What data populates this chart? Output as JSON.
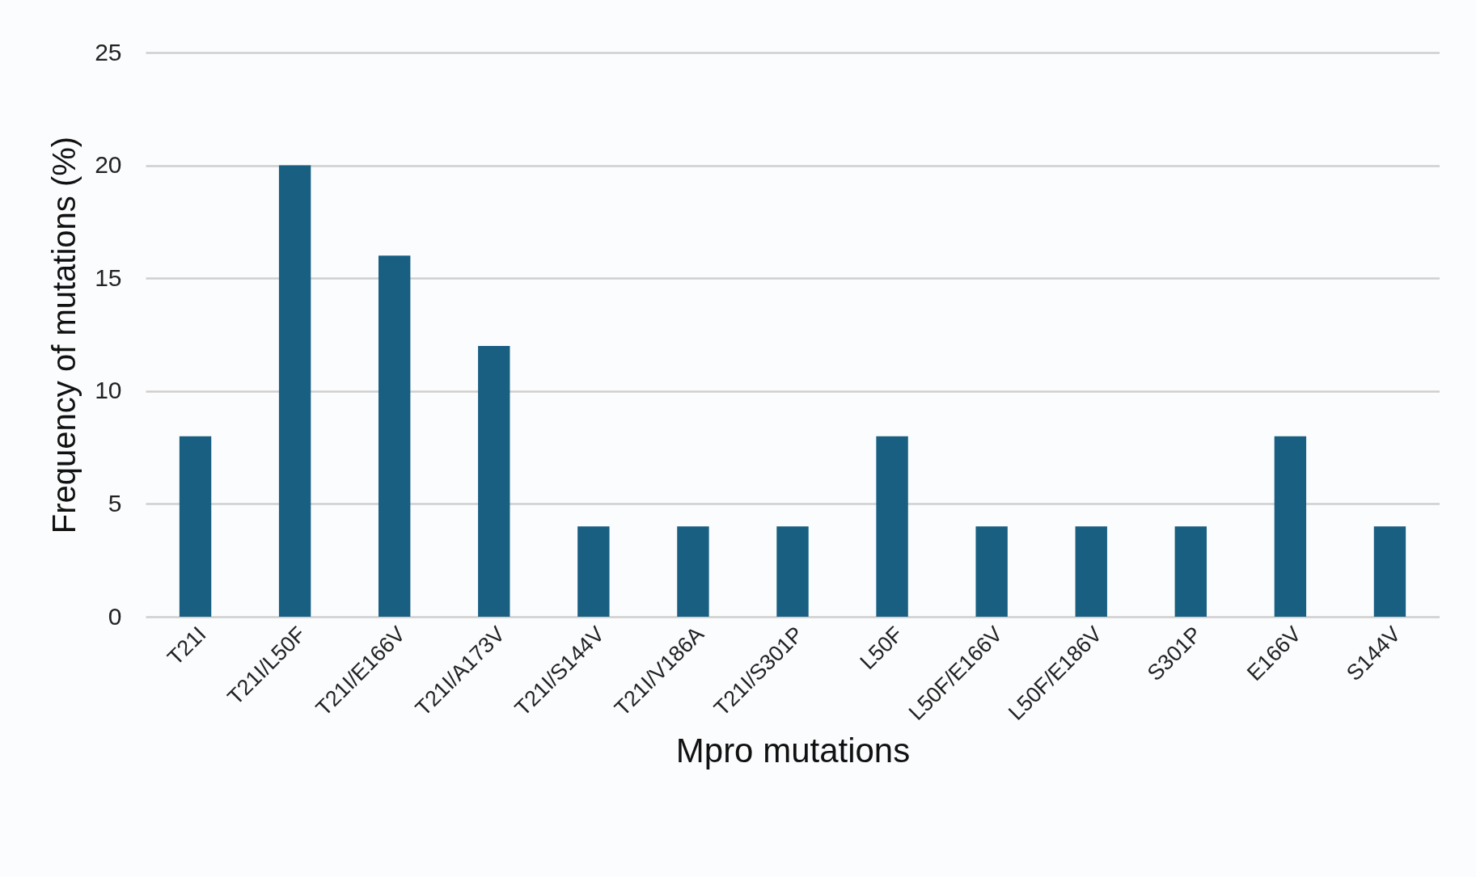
{
  "chart_data": {
    "type": "bar",
    "xlabel": "Mpro mutations",
    "ylabel": "Frequency of mutations (%)",
    "categories": [
      "T21I",
      "T21I/L50F",
      "T21I/E166V",
      "T21I/A173V",
      "T21I/S144V",
      "T21I/V186A",
      "T21I/S301P",
      "L50F",
      "L50F/E166V",
      "L50F/E186V",
      "S301P",
      "E166V",
      "S144V"
    ],
    "values": [
      8,
      20,
      16,
      12,
      4,
      4,
      4,
      8,
      4,
      4,
      4,
      8,
      4
    ],
    "color": "#185f82",
    "ylim": [
      0,
      25
    ],
    "yticks": [
      0,
      5,
      10,
      15,
      20,
      25
    ],
    "grid": "y"
  }
}
